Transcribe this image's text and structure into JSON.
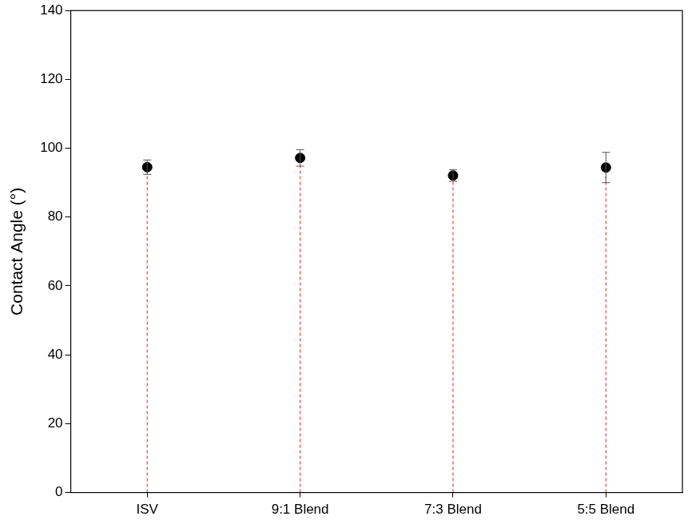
{
  "chart_data": {
    "type": "scatter",
    "categories": [
      "ISV",
      "9:1 Blend",
      "7:3 Blend",
      "5:5 Blend"
    ],
    "values": [
      94.5,
      97.2,
      92.1,
      94.4
    ],
    "errors": [
      2.1,
      2.4,
      1.7,
      4.4
    ],
    "color": "#000000",
    "marker": "circle",
    "y_label": "Contact Angle (°)",
    "ylim": [
      0,
      140
    ],
    "yticks": [
      0,
      20,
      40,
      60,
      80,
      100,
      120,
      140
    ],
    "grid": false
  }
}
